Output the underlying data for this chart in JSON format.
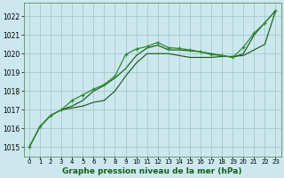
{
  "title": "Graphe pression niveau de la mer (hPa)",
  "background_color": "#cce8ee",
  "grid_color": "#aaccd4",
  "line_color_dark": "#1a5c1a",
  "line_color_light": "#2d8c2d",
  "xlim": [
    -0.5,
    23.5
  ],
  "ylim": [
    1014.5,
    1022.7
  ],
  "xticks": [
    0,
    1,
    2,
    3,
    4,
    5,
    6,
    7,
    8,
    9,
    10,
    11,
    12,
    13,
    14,
    15,
    16,
    17,
    18,
    19,
    20,
    21,
    22,
    23
  ],
  "yticks": [
    1015,
    1016,
    1017,
    1018,
    1019,
    1020,
    1021,
    1022
  ],
  "series1": [
    1015.0,
    1016.1,
    1016.7,
    1017.0,
    1017.1,
    1017.2,
    1017.4,
    1017.5,
    1018.0,
    1018.8,
    1019.5,
    1020.0,
    1020.0,
    1020.0,
    1019.9,
    1019.8,
    1019.8,
    1019.8,
    1019.85,
    1019.85,
    1019.9,
    1020.2,
    1020.5,
    1022.3
  ],
  "series2": [
    1015.0,
    1016.1,
    1016.7,
    1017.0,
    1017.2,
    1017.5,
    1018.0,
    1018.3,
    1018.7,
    1019.2,
    1019.9,
    1020.3,
    1020.45,
    1020.2,
    1020.2,
    1020.15,
    1020.1,
    1020.0,
    1019.9,
    1019.8,
    1020.0,
    1021.0,
    1021.65,
    1022.3
  ],
  "series3": [
    1015.0,
    1016.1,
    1016.7,
    1017.0,
    1017.5,
    1017.8,
    1018.1,
    1018.35,
    1018.8,
    1019.95,
    1020.25,
    1020.38,
    1020.6,
    1020.32,
    1020.28,
    1020.2,
    1020.1,
    1019.95,
    1019.9,
    1019.8,
    1020.35,
    1021.1,
    1021.65,
    1022.3
  ]
}
